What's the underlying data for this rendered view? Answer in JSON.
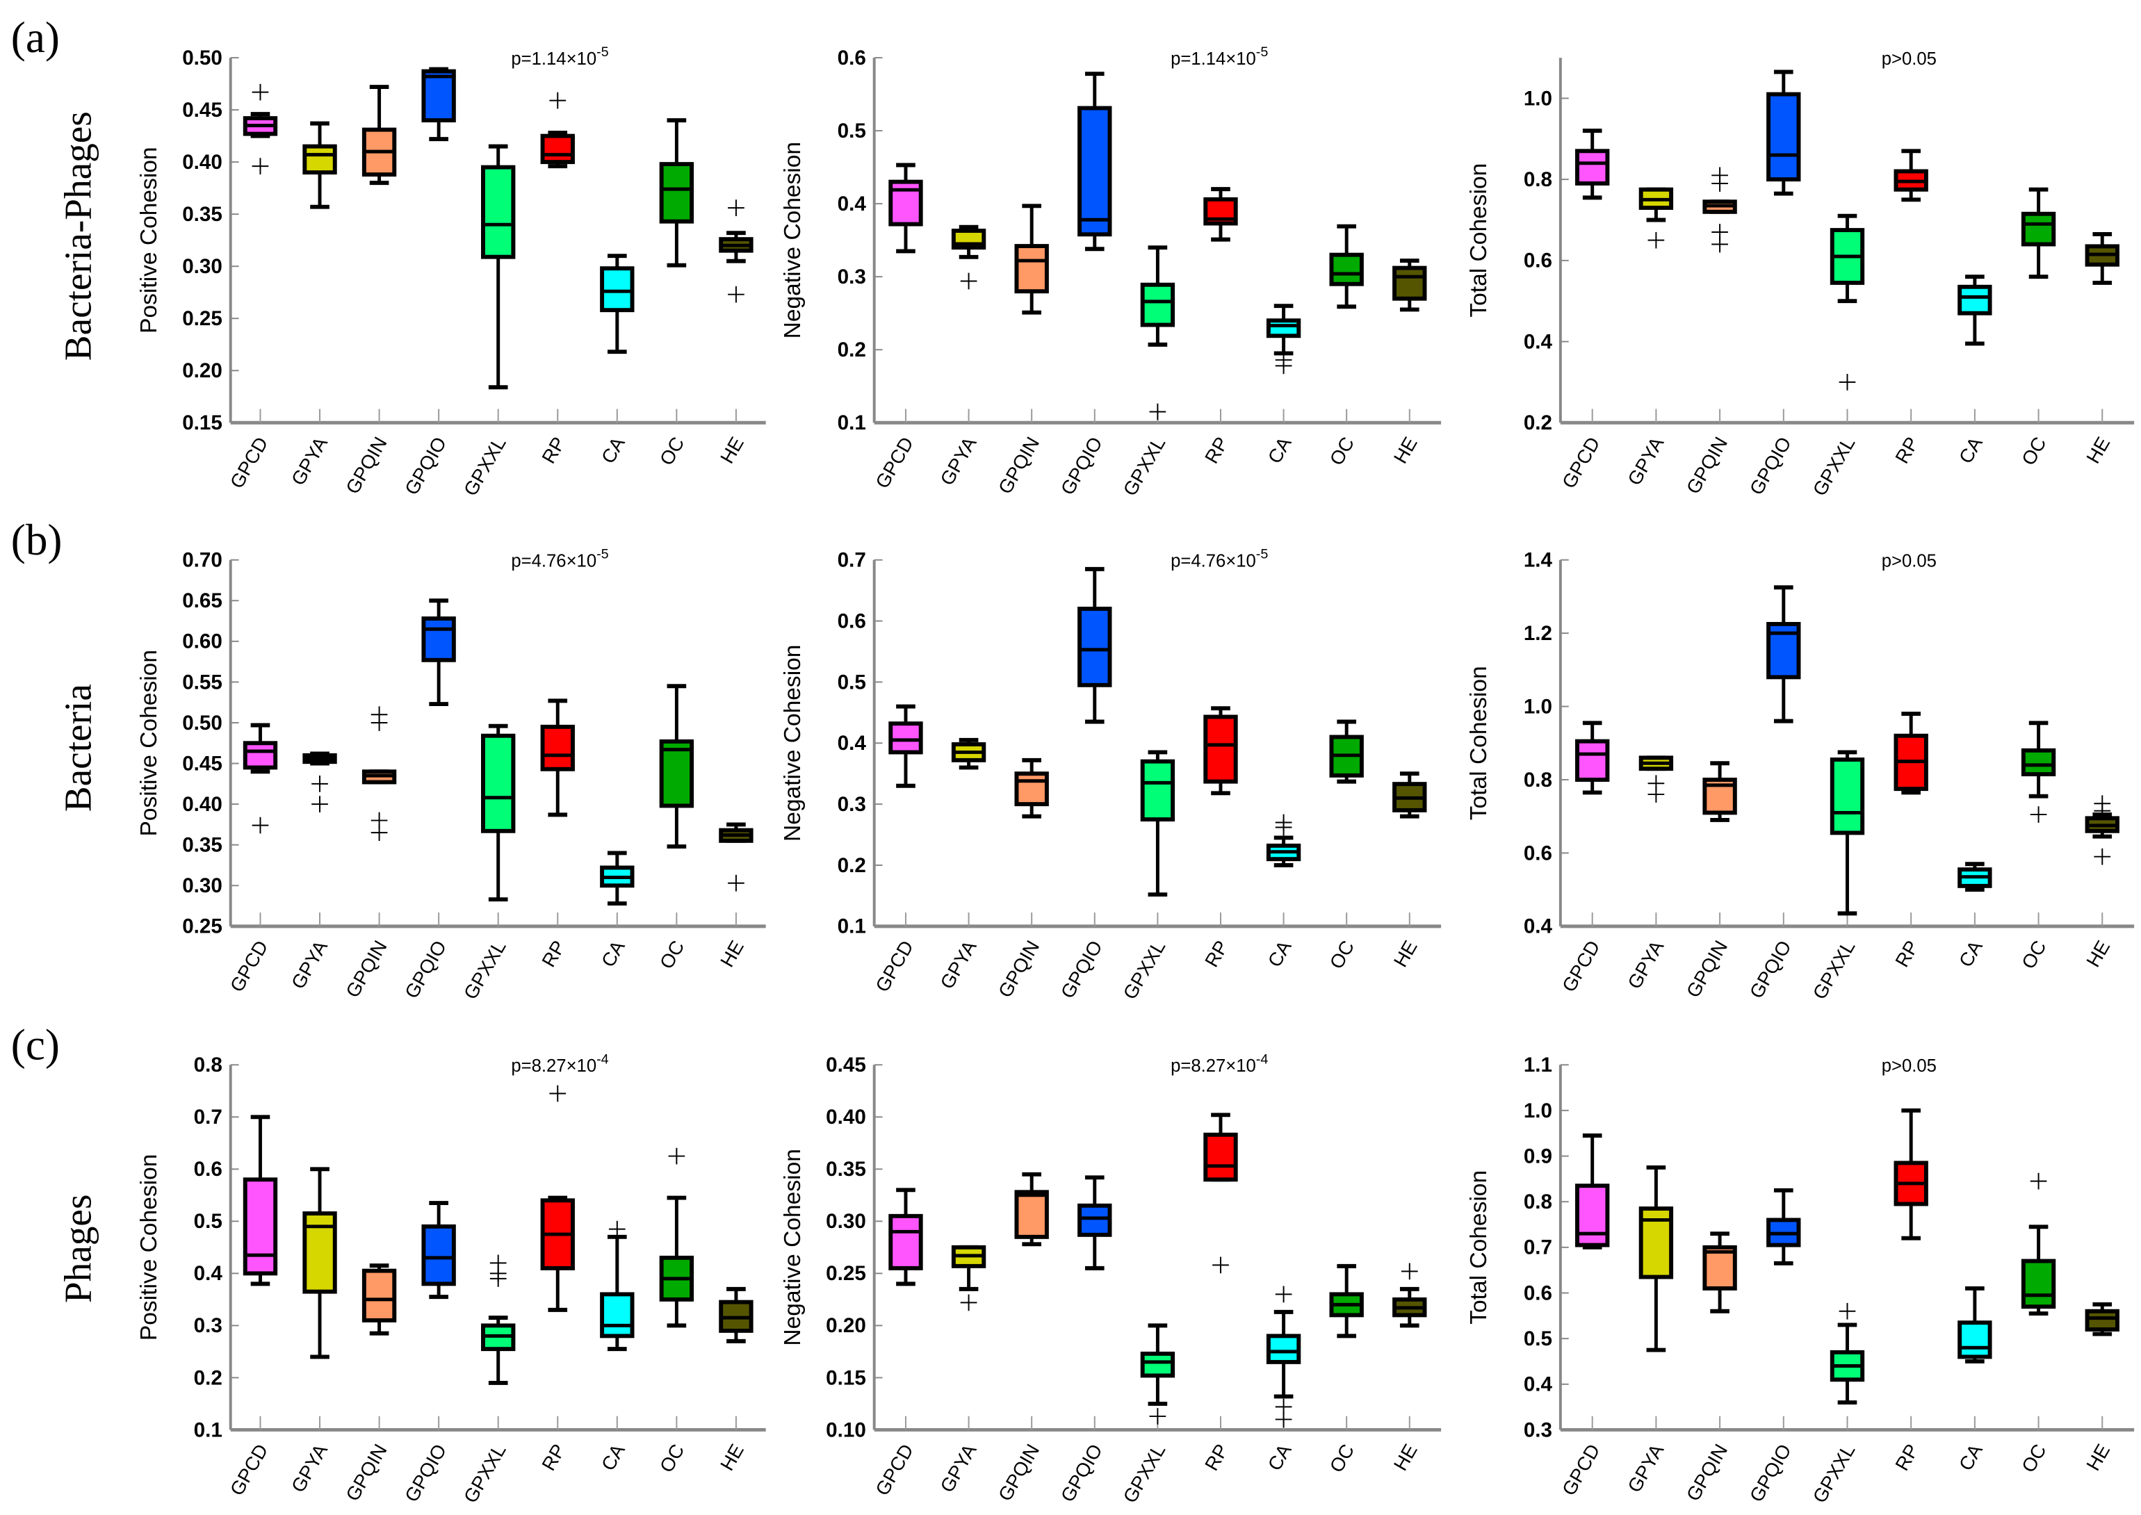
{
  "rows": [
    {
      "letter": "(a)",
      "label": "Bacteria-Phages"
    },
    {
      "letter": "(b)",
      "label": "Bacteria"
    },
    {
      "letter": "(c)",
      "label": "Phages"
    }
  ],
  "colors": {
    "GPCD": "#ff55ff",
    "GPYA": "#d6d600",
    "GPQIN": "#ff9966",
    "GPQIO": "#0055ff",
    "GPXXL": "#00ff77",
    "RP": "#ff0000",
    "CA": "#00ffff",
    "OC": "#00aa00",
    "HE": "#555500"
  },
  "chart_data": [
    {
      "type": "box",
      "ylabel": "Positive Cohesion",
      "p_base": "p=1.14×10",
      "p_exp": "-5",
      "ylim": [
        0.15,
        0.5
      ],
      "yticks": [
        "0.15",
        "0.20",
        "0.25",
        "0.30",
        "0.35",
        "0.40",
        "0.45",
        "0.50"
      ],
      "categories": [
        "GPCD",
        "GPYA",
        "GPQIN",
        "GPQIO",
        "GPXXL",
        "RP",
        "CA",
        "OC",
        "HE"
      ],
      "boxes": [
        [
          0.425,
          0.427,
          0.435,
          0.442,
          0.446,
          [
            0.467,
            0.396
          ]
        ],
        [
          0.357,
          0.39,
          0.407,
          0.415,
          0.437,
          []
        ],
        [
          0.38,
          0.388,
          0.41,
          0.431,
          0.472,
          []
        ],
        [
          0.422,
          0.44,
          0.482,
          0.487,
          0.489,
          []
        ],
        [
          0.184,
          0.309,
          0.34,
          0.395,
          0.415,
          []
        ],
        [
          0.396,
          0.4,
          0.407,
          0.425,
          0.428,
          [
            0.459
          ]
        ],
        [
          0.218,
          0.258,
          0.276,
          0.298,
          0.31,
          []
        ],
        [
          0.301,
          0.343,
          0.374,
          0.398,
          0.44,
          []
        ],
        [
          0.305,
          0.315,
          0.32,
          0.326,
          0.332,
          [
            0.356,
            0.273
          ]
        ]
      ]
    },
    {
      "type": "box",
      "ylabel": "Negative Cohesion",
      "p_base": "p=1.14×10",
      "p_exp": "-5",
      "ylim": [
        0.1,
        0.6
      ],
      "yticks": [
        "0.1",
        "0.2",
        "0.3",
        "0.4",
        "0.5",
        "0.6"
      ],
      "categories": [
        "GPCD",
        "GPYA",
        "GPQIN",
        "GPQIO",
        "GPXXL",
        "RP",
        "CA",
        "OC",
        "HE"
      ],
      "boxes": [
        [
          0.335,
          0.372,
          0.419,
          0.43,
          0.453,
          []
        ],
        [
          0.327,
          0.34,
          0.345,
          0.363,
          0.368,
          [
            0.294
          ]
        ],
        [
          0.251,
          0.28,
          0.322,
          0.342,
          0.397,
          []
        ],
        [
          0.338,
          0.358,
          0.378,
          0.531,
          0.578,
          []
        ],
        [
          0.207,
          0.234,
          0.266,
          0.289,
          0.34,
          [
            0.115
          ]
        ],
        [
          0.351,
          0.373,
          0.379,
          0.406,
          0.42,
          []
        ],
        [
          0.195,
          0.219,
          0.233,
          0.24,
          0.26,
          [
            0.186,
            0.178
          ]
        ],
        [
          0.259,
          0.29,
          0.304,
          0.33,
          0.369,
          []
        ],
        [
          0.255,
          0.27,
          0.3,
          0.312,
          0.322,
          []
        ]
      ]
    },
    {
      "type": "box",
      "ylabel": "Total Cohesion",
      "p_base": "p>0.05",
      "p_exp": "",
      "ylim": [
        0.2,
        1.1
      ],
      "yticks": [
        "0.2",
        "0.4",
        "0.6",
        "0.8",
        "1.0"
      ],
      "categories": [
        "GPCD",
        "GPYA",
        "GPQIN",
        "GPQIO",
        "GPXXL",
        "RP",
        "CA",
        "OC",
        "HE"
      ],
      "boxes": [
        [
          0.755,
          0.79,
          0.84,
          0.87,
          0.92,
          []
        ],
        [
          0.7,
          0.73,
          0.75,
          0.775,
          0.775,
          [
            0.65
          ]
        ],
        [
          0.72,
          0.72,
          0.735,
          0.745,
          0.745,
          [
            0.81,
            0.79,
            0.67,
            0.64
          ]
        ],
        [
          0.765,
          0.8,
          0.86,
          1.01,
          1.065,
          []
        ],
        [
          0.5,
          0.545,
          0.61,
          0.675,
          0.71,
          [
            0.3
          ]
        ],
        [
          0.75,
          0.775,
          0.795,
          0.82,
          0.87,
          []
        ],
        [
          0.395,
          0.47,
          0.51,
          0.535,
          0.56,
          []
        ],
        [
          0.56,
          0.64,
          0.69,
          0.715,
          0.775,
          []
        ],
        [
          0.545,
          0.59,
          0.615,
          0.635,
          0.665,
          []
        ]
      ]
    },
    {
      "type": "box",
      "ylabel": "Positive Cohesion",
      "p_base": "p=4.76×10",
      "p_exp": "-5",
      "ylim": [
        0.25,
        0.7
      ],
      "yticks": [
        "0.25",
        "0.30",
        "0.35",
        "0.40",
        "0.45",
        "0.50",
        "0.55",
        "0.60",
        "0.65",
        "0.70"
      ],
      "categories": [
        "GPCD",
        "GPYA",
        "GPQIN",
        "GPQIO",
        "GPXXL",
        "RP",
        "CA",
        "OC",
        "HE"
      ],
      "boxes": [
        [
          0.44,
          0.445,
          0.465,
          0.475,
          0.497,
          [
            0.374
          ]
        ],
        [
          0.45,
          0.452,
          0.456,
          0.46,
          0.462,
          [
            0.425,
            0.4
          ]
        ],
        [
          0.427,
          0.427,
          0.435,
          0.44,
          0.44,
          [
            0.51,
            0.5,
            0.38,
            0.365
          ]
        ],
        [
          0.523,
          0.577,
          0.615,
          0.628,
          0.65,
          []
        ],
        [
          0.283,
          0.367,
          0.408,
          0.484,
          0.496,
          []
        ],
        [
          0.387,
          0.443,
          0.46,
          0.495,
          0.527,
          []
        ],
        [
          0.278,
          0.3,
          0.31,
          0.322,
          0.34,
          []
        ],
        [
          0.348,
          0.398,
          0.467,
          0.477,
          0.545,
          []
        ],
        [
          0.355,
          0.355,
          0.362,
          0.368,
          0.375,
          [
            0.303
          ]
        ]
      ]
    },
    {
      "type": "box",
      "ylabel": "Negative Cohesion",
      "p_base": "p=4.76×10",
      "p_exp": "-5",
      "ylim": [
        0.1,
        0.7
      ],
      "yticks": [
        "0.1",
        "0.2",
        "0.3",
        "0.4",
        "0.5",
        "0.6",
        "0.7"
      ],
      "categories": [
        "GPCD",
        "GPYA",
        "GPQIN",
        "GPQIO",
        "GPXXL",
        "RP",
        "CA",
        "OC",
        "HE"
      ],
      "boxes": [
        [
          0.33,
          0.385,
          0.405,
          0.432,
          0.46,
          []
        ],
        [
          0.36,
          0.372,
          0.385,
          0.398,
          0.405,
          []
        ],
        [
          0.28,
          0.3,
          0.338,
          0.35,
          0.372,
          []
        ],
        [
          0.435,
          0.495,
          0.553,
          0.62,
          0.685,
          []
        ],
        [
          0.152,
          0.275,
          0.335,
          0.37,
          0.385,
          []
        ],
        [
          0.318,
          0.337,
          0.397,
          0.443,
          0.457,
          []
        ],
        [
          0.2,
          0.21,
          0.222,
          0.232,
          0.245,
          [
            0.27,
            0.262
          ]
        ],
        [
          0.337,
          0.347,
          0.38,
          0.41,
          0.435,
          []
        ],
        [
          0.28,
          0.29,
          0.31,
          0.333,
          0.35,
          []
        ]
      ]
    },
    {
      "type": "box",
      "ylabel": "Total Cohesion",
      "p_base": "p>0.05",
      "p_exp": "",
      "ylim": [
        0.4,
        1.4
      ],
      "yticks": [
        "0.4",
        "0.6",
        "0.8",
        "1.0",
        "1.2",
        "1.4"
      ],
      "categories": [
        "GPCD",
        "GPYA",
        "GPQIN",
        "GPQIO",
        "GPXXL",
        "RP",
        "CA",
        "OC",
        "HE"
      ],
      "boxes": [
        [
          0.765,
          0.8,
          0.87,
          0.905,
          0.955,
          []
        ],
        [
          0.83,
          0.83,
          0.845,
          0.86,
          0.86,
          [
            0.79,
            0.76
          ]
        ],
        [
          0.69,
          0.71,
          0.785,
          0.8,
          0.845,
          []
        ],
        [
          0.96,
          1.08,
          1.2,
          1.225,
          1.325,
          []
        ],
        [
          0.435,
          0.655,
          0.71,
          0.855,
          0.875,
          []
        ],
        [
          0.765,
          0.775,
          0.85,
          0.92,
          0.98,
          []
        ],
        [
          0.5,
          0.51,
          0.535,
          0.555,
          0.57,
          []
        ],
        [
          0.755,
          0.815,
          0.84,
          0.88,
          0.955,
          [
            0.705
          ]
        ],
        [
          0.645,
          0.66,
          0.675,
          0.695,
          0.705,
          [
            0.735,
            0.715,
            0.59
          ]
        ]
      ]
    },
    {
      "type": "box",
      "ylabel": "Positive Cohesion",
      "p_base": "p=8.27×10",
      "p_exp": "-4",
      "ylim": [
        0.1,
        0.8
      ],
      "yticks": [
        "0.1",
        "0.2",
        "0.3",
        "0.4",
        "0.5",
        "0.6",
        "0.7",
        "0.8"
      ],
      "categories": [
        "GPCD",
        "GPYA",
        "GPQIN",
        "GPQIO",
        "GPXXL",
        "RP",
        "CA",
        "OC",
        "HE"
      ],
      "boxes": [
        [
          0.38,
          0.4,
          0.435,
          0.58,
          0.7,
          []
        ],
        [
          0.24,
          0.365,
          0.49,
          0.515,
          0.6,
          []
        ],
        [
          0.285,
          0.31,
          0.35,
          0.405,
          0.415,
          []
        ],
        [
          0.355,
          0.38,
          0.43,
          0.49,
          0.535,
          []
        ],
        [
          0.19,
          0.255,
          0.28,
          0.3,
          0.315,
          [
            0.42,
            0.4,
            0.39
          ]
        ],
        [
          0.33,
          0.41,
          0.475,
          0.54,
          0.545,
          [
            0.745
          ]
        ],
        [
          0.255,
          0.28,
          0.3,
          0.36,
          0.47,
          [
            0.485
          ]
        ],
        [
          0.3,
          0.35,
          0.39,
          0.43,
          0.545,
          [
            0.625
          ]
        ],
        [
          0.27,
          0.29,
          0.315,
          0.345,
          0.37,
          []
        ]
      ]
    },
    {
      "type": "box",
      "ylabel": "Negative Cohesion",
      "p_base": "p=8.27×10",
      "p_exp": "-4",
      "ylim": [
        0.1,
        0.45
      ],
      "yticks": [
        "0.10",
        "0.15",
        "0.20",
        "0.25",
        "0.30",
        "0.35",
        "0.40",
        "0.45"
      ],
      "categories": [
        "GPCD",
        "GPYA",
        "GPQIN",
        "GPQIO",
        "GPXXL",
        "RP",
        "CA",
        "OC",
        "HE"
      ],
      "boxes": [
        [
          0.24,
          0.255,
          0.29,
          0.305,
          0.33,
          []
        ],
        [
          0.235,
          0.257,
          0.267,
          0.275,
          0.275,
          [
            0.222
          ]
        ],
        [
          0.278,
          0.285,
          0.325,
          0.328,
          0.345,
          []
        ],
        [
          0.255,
          0.287,
          0.303,
          0.315,
          0.342,
          []
        ],
        [
          0.125,
          0.152,
          0.165,
          0.173,
          0.2,
          [
            0.113
          ]
        ],
        [
          0.34,
          0.34,
          0.353,
          0.383,
          0.402,
          [
            0.258
          ]
        ],
        [
          0.132,
          0.165,
          0.175,
          0.19,
          0.213,
          [
            0.23,
            0.122,
            0.11
          ]
        ],
        [
          0.19,
          0.21,
          0.22,
          0.23,
          0.257,
          []
        ],
        [
          0.2,
          0.21,
          0.217,
          0.225,
          0.235,
          [
            0.252
          ]
        ]
      ]
    },
    {
      "type": "box",
      "ylabel": "Total Cohesion",
      "p_base": "p>0.05",
      "p_exp": "",
      "ylim": [
        0.3,
        1.1
      ],
      "yticks": [
        "0.3",
        "0.4",
        "0.5",
        "0.6",
        "0.7",
        "0.8",
        "0.9",
        "1.0",
        "1.1"
      ],
      "categories": [
        "GPCD",
        "GPYA",
        "GPQIN",
        "GPQIO",
        "GPXXL",
        "RP",
        "CA",
        "OC",
        "HE"
      ],
      "boxes": [
        [
          0.7,
          0.705,
          0.73,
          0.835,
          0.945,
          []
        ],
        [
          0.475,
          0.635,
          0.76,
          0.785,
          0.875,
          []
        ],
        [
          0.56,
          0.61,
          0.69,
          0.7,
          0.73,
          []
        ],
        [
          0.665,
          0.705,
          0.73,
          0.76,
          0.825,
          []
        ],
        [
          0.36,
          0.41,
          0.44,
          0.47,
          0.53,
          [
            0.56
          ]
        ],
        [
          0.72,
          0.795,
          0.84,
          0.885,
          1.0,
          []
        ],
        [
          0.45,
          0.46,
          0.48,
          0.535,
          0.61,
          []
        ],
        [
          0.555,
          0.57,
          0.595,
          0.67,
          0.745,
          [
            0.845
          ]
        ],
        [
          0.51,
          0.52,
          0.545,
          0.56,
          0.575,
          []
        ]
      ]
    }
  ]
}
